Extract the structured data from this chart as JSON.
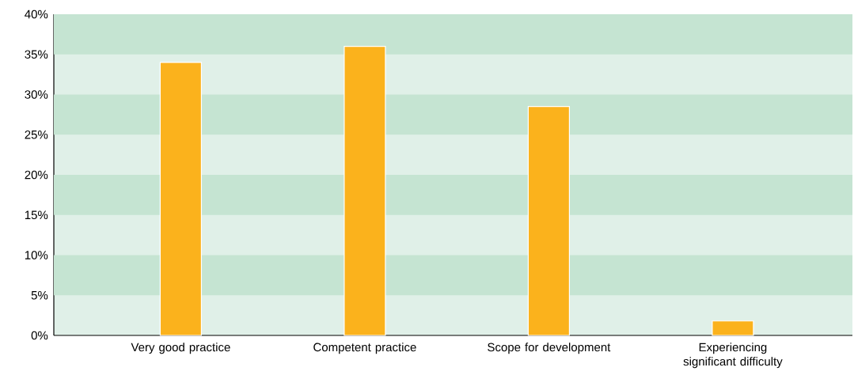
{
  "chart_data": {
    "type": "bar",
    "categories": [
      "Very good practice",
      "Competent practice",
      "Scope for development",
      "Experiencing significant difficulty"
    ],
    "values": [
      34,
      36,
      28.5,
      1.8
    ],
    "color": "#fbb21c",
    "ylim": [
      0,
      40
    ],
    "yticks": [
      {
        "value": 0,
        "label": "0%"
      },
      {
        "value": 5,
        "label": "5%"
      },
      {
        "value": 10,
        "label": "10%"
      },
      {
        "value": 15,
        "label": "15%"
      },
      {
        "value": 20,
        "label": "20%"
      },
      {
        "value": 25,
        "label": "25%"
      },
      {
        "value": 30,
        "label": "30%"
      },
      {
        "value": 35,
        "label": "35%"
      },
      {
        "value": 40,
        "label": "40%"
      }
    ],
    "bands": [
      {
        "axis": "y",
        "from": 5,
        "to": 10,
        "color": "#c5e4d2"
      },
      {
        "axis": "y",
        "from": 15,
        "to": 20,
        "color": "#c5e4d2"
      },
      {
        "axis": "y",
        "from": 25,
        "to": 30,
        "color": "#c5e4d2"
      },
      {
        "axis": "y",
        "from": 35,
        "to": 40,
        "color": "#c5e4d2"
      }
    ]
  }
}
